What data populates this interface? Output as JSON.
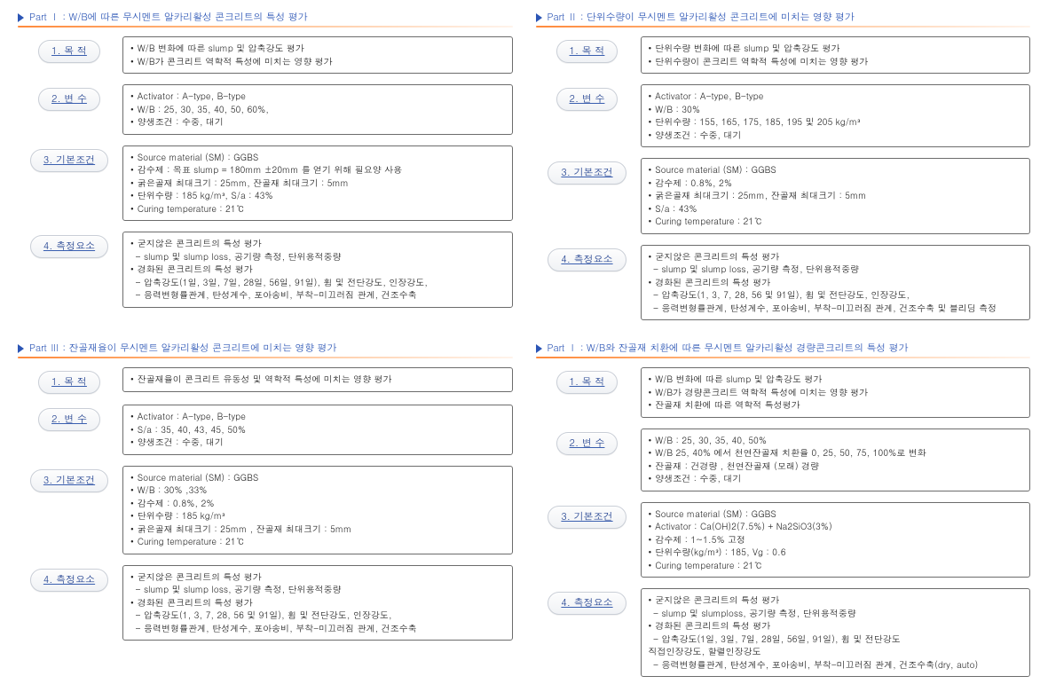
{
  "parts": [
    {
      "title": "Part Ⅰ : W/B에 따른 무시멘트 알카리활성 콘크리트의 특성 평가",
      "sections": [
        {
          "label": "1. 목 적",
          "items": [
            {
              "style": "bulleted",
              "text": "W/B 변화에 따른 slump 및 압축강도 평가"
            },
            {
              "style": "bulleted",
              "text": "W/B가 콘크리트 역학적 특성에 미치는 영향 평가"
            }
          ]
        },
        {
          "label": "2. 변 수",
          "items": [
            {
              "style": "bulleted",
              "text": "Activator : A-type, B-type"
            },
            {
              "style": "bulleted",
              "text": "W/B : 25, 30, 35, 40, 50, 60%,"
            },
            {
              "style": "bulleted",
              "text": "양생조건 : 수중, 대기"
            }
          ]
        },
        {
          "label": "3. 기본조건",
          "items": [
            {
              "style": "bulleted",
              "text": "Source material (SM) : GGBS"
            },
            {
              "style": "bulleted",
              "text": "감수제 : 목표 slump = 180mm ±20mm 를 얻기 위해 필요양 사용"
            },
            {
              "style": "bulleted",
              "text": "굵은골재 최대크기 : 25mm,   잔골재 최대크기 : 5mm"
            },
            {
              "style": "bulleted",
              "text": "단위수량 : 185 kg/m³,      S/a : 43%"
            },
            {
              "style": "bulleted",
              "text": "Curing temperature : 21℃"
            }
          ]
        },
        {
          "label": "4. 측정요소",
          "items": [
            {
              "style": "bulleted",
              "text": "굳지않은 콘크리트의 특성 평가"
            },
            {
              "style": "dash",
              "text": "slump 및 slump loss, 공기량 측정, 단위용적중량"
            },
            {
              "style": "bulleted",
              "text": "경화된 콘크리트의 특성 평가"
            },
            {
              "style": "dash",
              "text": "압축강도(1일, 3일, 7일, 28일, 56일, 91일), 휨 및 전단강도, 인장강도,"
            },
            {
              "style": "dash",
              "text": "응력변형률관계, 탄성계수, 포아송비, 부착-미끄러짐 관계, 건조수축"
            }
          ]
        }
      ]
    },
    {
      "title": "Part Ⅱ : 단위수량이 무시멘트 알카리활성 콘크리트에 미치는 영향 평가",
      "sections": [
        {
          "label": "1. 목 적",
          "items": [
            {
              "style": "bulleted",
              "text": "단위수량 변화에 따른 slump 및 압축강도 평가"
            },
            {
              "style": "bulleted",
              "text": "단위수량이 콘크리트 역학적 특성에 미치는 영향 평가"
            }
          ]
        },
        {
          "label": "2. 변 수",
          "items": [
            {
              "style": "bulleted",
              "text": "Activator : A-type, B-type"
            },
            {
              "style": "bulleted",
              "text": "W/B : 30%"
            },
            {
              "style": "bulleted",
              "text": "단위수량 : 155, 165, 175, 185, 195 및 205 kg/m³"
            },
            {
              "style": "bulleted",
              "text": "양생조건 : 수중, 대기"
            }
          ]
        },
        {
          "label": "3. 기본조건",
          "items": [
            {
              "style": "bulleted",
              "text": "Source material (SM) : GGBS"
            },
            {
              "style": "bulleted",
              "text": "감수제 : 0.8%, 2%"
            },
            {
              "style": "bulleted",
              "text": "굵은골재 최대크기 : 25mm,  잔골재 최대크기 : 5mm"
            },
            {
              "style": "bulleted",
              "text": "S/a : 43%"
            },
            {
              "style": "bulleted",
              "text": "Curing temperature : 21℃"
            }
          ]
        },
        {
          "label": "4. 측정요소",
          "items": [
            {
              "style": "bulleted",
              "text": "굳지않은 콘크리트의 특성 평가"
            },
            {
              "style": "dash",
              "text": "slump 및 slump loss,   공기량 측정, 단위용적중량"
            },
            {
              "style": "bulleted",
              "text": "경화된 콘크리트의 특성 평가"
            },
            {
              "style": "dash",
              "text": "압축강도(1, 3, 7, 28, 56 및 91일), 휨 및 전단강도, 인장강도,"
            },
            {
              "style": "dash",
              "text": "응력변형률관계, 탄성계수, 포아송비, 부착-미끄러짐 관계, 건조수축 및 블리딩 측정"
            }
          ]
        }
      ]
    },
    {
      "title": "Part Ⅲ : 잔골재율이 무시멘트 알카리활성 콘크리트에 미치는 영향 평가",
      "sections": [
        {
          "label": "1. 목 적",
          "items": [
            {
              "style": "bulleted",
              "text": "잔골재율이 콘크리트 유동성 및 역학적 특성에 미치는 영향 평가"
            }
          ]
        },
        {
          "label": "2. 변 수",
          "items": [
            {
              "style": "bulleted",
              "text": "Activator : A-type, B-type"
            },
            {
              "style": "bulleted",
              "text": "S/a : 35, 40, 43, 45, 50%"
            },
            {
              "style": "bulleted",
              "text": "양생조건 : 수중, 대기"
            }
          ]
        },
        {
          "label": "3. 기본조건",
          "items": [
            {
              "style": "bulleted",
              "text": "Source material (SM) : GGBS"
            },
            {
              "style": "bulleted",
              "text": "W/B : 30% ,33%"
            },
            {
              "style": "bulleted",
              "text": "감수제 : 0.8%, 2%"
            },
            {
              "style": "bulleted",
              "text": "단위수량 : 185 kg/m³"
            },
            {
              "style": "bulleted",
              "text": "굵은골재 최대크기 : 25mm ,      잔골재 최대크기 : 5mm"
            },
            {
              "style": "bulleted",
              "text": "Curing temperature : 21℃"
            }
          ]
        },
        {
          "label": "4. 측정요소",
          "items": [
            {
              "style": "bulleted",
              "text": "굳지않은 콘크리트의 특성 평가"
            },
            {
              "style": "dash",
              "text": "slump 및 slump loss,   공기량 측정, 단위용적중량"
            },
            {
              "style": "bulleted",
              "text": "경화된 콘크리트의 특성 평가"
            },
            {
              "style": "dash",
              "text": "압축강도(1, 3, 7, 28, 56 및 91일), 휨 및 전단강도, 인장강도,"
            },
            {
              "style": "dash",
              "text": "응력변형률관계, 탄성계수, 포아송비, 부착-미끄러짐 관계, 건조수축"
            }
          ]
        }
      ]
    },
    {
      "title": "Part Ⅰ : W/B와 잔골재 치환에 따른 무시멘트 알카리활성 경량콘크리트의 특성 평가",
      "sections": [
        {
          "label": "1. 목 적",
          "items": [
            {
              "style": "bulleted",
              "text": "W/B 변화에 따른 slump 및 압축강도 평가"
            },
            {
              "style": "bulleted",
              "text": "W/B가 경량콘크리트 역학적 특성에 미치는 영향 평가"
            },
            {
              "style": "bulleted",
              "text": "잔골재 치환에 따른 역학적 특성평가"
            }
          ]
        },
        {
          "label": "2. 변 수",
          "items": [
            {
              "style": "bulleted",
              "text": "W/B :  25, 30, 35, 40, 50%"
            },
            {
              "style": "bulleted",
              "text": "W/B 25, 40% 에서 천연잔골재 치환율 0, 25, 50, 75, 100%로 변화"
            },
            {
              "style": "bulleted",
              "text": "잔골재 : 건경량 , 천연잔골재 (모래) 경량"
            },
            {
              "style": "bulleted",
              "text": "양생조건 : 수중, 대기"
            }
          ]
        },
        {
          "label": "3. 기본조건",
          "items": [
            {
              "style": "bulleted",
              "text": "Source material (SM) : GGBS"
            },
            {
              "style": "bulleted",
              "text": "Activator : Ca(OH)2(7.5%) + Na2SiO3(3%)"
            },
            {
              "style": "bulleted",
              "text": "감수제 : 1~1.5% 고정"
            },
            {
              "style": "bulleted",
              "text": "단위수량(kg/m³) : 185,    Vg : 0.6"
            },
            {
              "style": "bulleted",
              "text": "Curing temperature : 21℃"
            }
          ]
        },
        {
          "label": "4. 측정요소",
          "items": [
            {
              "style": "bulleted",
              "text": "굳지않은 콘크리트의 특성 평가"
            },
            {
              "style": "dash",
              "text": "slump 및 slumploss,    공기량 측정, 단위용적중량"
            },
            {
              "style": "bulleted",
              "text": "경화된 콘크리트의 특성 평가"
            },
            {
              "style": "dash",
              "text": "압축강도(1일, 3일, 7일, 28일, 56일, 91일), 휨 및 전단강도"
            },
            {
              "style": "plain",
              "text": "   직접인장강도, 할렬인장강도"
            },
            {
              "style": "dash",
              "text": "응력변형률관계, 탄성계수, 포아송비, 부착-미끄러짐 관계, 건조수축(dry, auto)"
            }
          ]
        }
      ]
    }
  ],
  "colors": {
    "title": "#2b55b5",
    "rule_from": "#ff8a3c",
    "rule_to": "#ffb37a",
    "pill_text": "#1f3f8f",
    "pill_border": "#c9ced6",
    "box_border": "#6c6c6c"
  }
}
